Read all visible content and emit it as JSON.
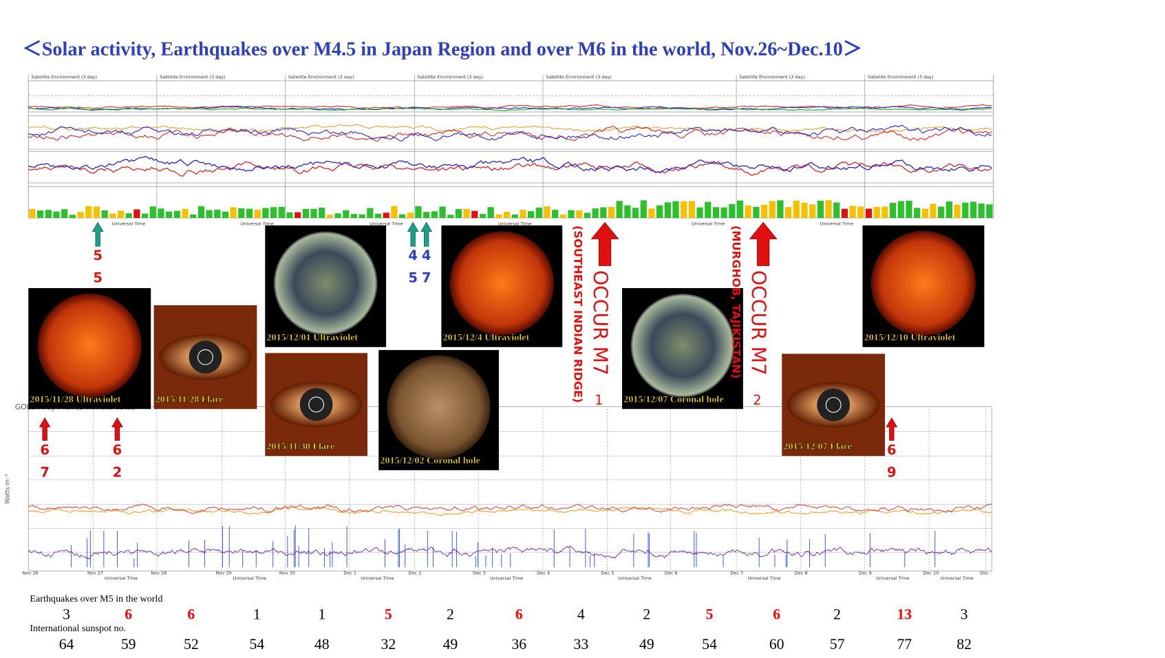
{
  "title": "＜Solar activity, Earthquakes over M4.5 in Japan Region and over M6 in the world, Nov.26~Dec.10＞",
  "top_panel": {
    "header": "Satellite Environment (3 day)",
    "axis_label": "Universal Time"
  },
  "xray_panel": {
    "header": "GOES Xray Flux (1-minute data)",
    "y_label": "Watts m⁻²",
    "axis_label": "Universal Time",
    "dates": [
      "Nov 26",
      "Nov 27",
      "Nov 28",
      "Nov 29",
      "Nov 30",
      "Dec 1",
      "Dec 2",
      "Dec 3",
      "Dec 4",
      "Dec 5",
      "Dec 6",
      "Dec 7",
      "Dec 8",
      "Dec 9",
      "Dec 10",
      "Dec"
    ]
  },
  "images": [
    {
      "caption": "2015/11/28 Ultraviolet",
      "kind": "sun-red"
    },
    {
      "caption": "2015/11/28 Flare",
      "kind": "corona"
    },
    {
      "caption": "2015/12/01 Ultraviolet",
      "kind": "sun-green"
    },
    {
      "caption": "2015/11/30 Flare",
      "kind": "corona"
    },
    {
      "caption": "2015/12/02 Coronal hole",
      "kind": "sun-brown"
    },
    {
      "caption": "2015/12/4 Ultraviolet",
      "kind": "sun-red"
    },
    {
      "caption": "2015/12/07 Coronal hole",
      "kind": "sun-green"
    },
    {
      "caption": "2015/12/07 Flare",
      "kind": "corona"
    },
    {
      "caption": "2015/12/10 Ultraviolet",
      "kind": "sun-red"
    }
  ],
  "japan_quakes": [
    {
      "lines": [
        "5",
        "5"
      ],
      "color": "#1f9e8a"
    },
    {
      "lines": [
        "4",
        "5"
      ],
      "color": "#1f9e8a"
    },
    {
      "lines": [
        "4",
        "7"
      ],
      "color": "#1f9e8a"
    }
  ],
  "world_quakes": [
    {
      "lines": [
        "6",
        "7"
      ]
    },
    {
      "lines": [
        "6",
        "2"
      ]
    },
    {
      "lines": [
        "6",
        "9"
      ]
    }
  ],
  "major_quakes": [
    {
      "text": "OCCUR M7",
      "decimal": "1",
      "location": "(SOUTHEAST INDIAN RIDGE)"
    },
    {
      "text": "OCCUR M7",
      "decimal": "2",
      "location": "(MURGHOB, TAJIKISTAN)"
    }
  ],
  "earthquakes": {
    "label": "Earthquakes over M5 in the world",
    "values": [
      3,
      6,
      6,
      1,
      1,
      5,
      2,
      6,
      4,
      2,
      5,
      6,
      2,
      13,
      3
    ],
    "colors": [
      "black",
      "red",
      "red",
      "black",
      "black",
      "red",
      "black",
      "red",
      "black",
      "black",
      "red",
      "red",
      "black",
      "red",
      "black"
    ]
  },
  "sunspots": {
    "label": "International sunspot no.",
    "values": [
      64,
      59,
      52,
      54,
      48,
      32,
      49,
      36,
      33,
      49,
      54,
      60,
      57,
      77,
      82
    ]
  }
}
